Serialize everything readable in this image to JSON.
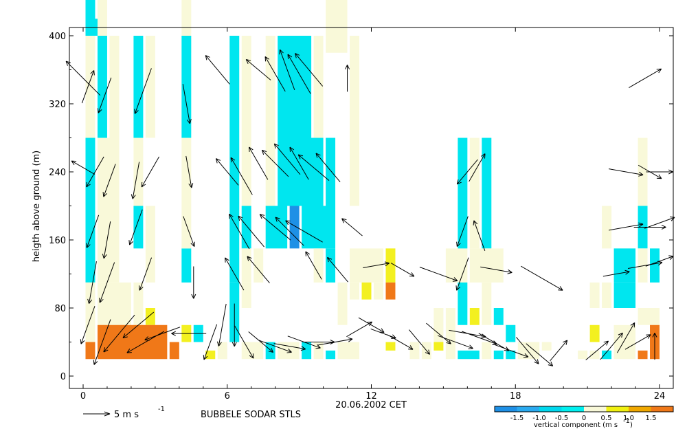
{
  "chart_data": {
    "type": "heatmap",
    "title": "",
    "xlabel": "20.06.2002 CET",
    "ylabel": "heigth above ground (m)",
    "xlim": [
      -0.5,
      24.5
    ],
    "ylim": [
      -10,
      405
    ],
    "xticks": [
      0,
      6,
      12,
      18,
      24
    ],
    "yticks": [
      0,
      80,
      160,
      240,
      320,
      400
    ],
    "caption": "BUBBELE SODAR STLS",
    "arrow_legend": "5 m s",
    "arrow_legend_exp": "-1",
    "colorbar": {
      "label": "vertical component (m s",
      "label_exp": "-1",
      "label_close": ")",
      "ticks": [
        "-1.5",
        "-1.0",
        "-0.5",
        "0",
        "0.5",
        "1.0",
        "1.5"
      ],
      "colors": [
        "#1e90e6",
        "#2aaaf0",
        "#00d8ee",
        "#00f0f0",
        "#f8f8d8",
        "#f0f010",
        "#f0a800",
        "#f07818"
      ]
    },
    "legend_colors": {
      "neg_strong": "#1e90e6",
      "neg": "#00e6ef",
      "zero": "#f9f9d9",
      "pos": "#f3f020",
      "pos_strong": "#f07818"
    },
    "cells": [
      [
        0.1,
        0.5,
        380,
        520,
        "neg"
      ],
      [
        0.6,
        1.0,
        380,
        520,
        "zero"
      ],
      [
        4.1,
        4.5,
        380,
        520,
        "zero"
      ],
      [
        10.1,
        11.0,
        380,
        520,
        "zero"
      ],
      [
        0.1,
        0.6,
        400,
        420,
        "neg"
      ],
      [
        0.1,
        0.5,
        280,
        400,
        "zero"
      ],
      [
        0.6,
        1.0,
        280,
        400,
        "neg"
      ],
      [
        1.1,
        1.5,
        280,
        400,
        "zero"
      ],
      [
        2.1,
        2.5,
        280,
        400,
        "neg"
      ],
      [
        2.6,
        3.0,
        280,
        400,
        "zero"
      ],
      [
        4.1,
        4.5,
        280,
        400,
        "neg"
      ],
      [
        6.1,
        6.5,
        280,
        400,
        "neg"
      ],
      [
        6.6,
        7.0,
        280,
        400,
        "zero"
      ],
      [
        7.6,
        8.0,
        280,
        400,
        "zero"
      ],
      [
        8.1,
        9.5,
        280,
        400,
        "neg"
      ],
      [
        9.6,
        10.0,
        280,
        400,
        "zero"
      ],
      [
        11.1,
        11.5,
        280,
        400,
        "zero"
      ],
      [
        0.1,
        0.5,
        200,
        280,
        "neg"
      ],
      [
        0.6,
        1.5,
        200,
        280,
        "zero"
      ],
      [
        2.1,
        2.5,
        200,
        280,
        "zero"
      ],
      [
        4.1,
        4.5,
        200,
        280,
        "zero"
      ],
      [
        6.1,
        6.5,
        200,
        280,
        "neg"
      ],
      [
        6.6,
        7.0,
        200,
        280,
        "zero"
      ],
      [
        7.6,
        8.0,
        200,
        280,
        "zero"
      ],
      [
        8.1,
        10.0,
        200,
        280,
        "neg"
      ],
      [
        10.1,
        10.5,
        200,
        280,
        "neg"
      ],
      [
        11.1,
        11.5,
        200,
        280,
        "zero"
      ],
      [
        15.6,
        16.0,
        200,
        280,
        "neg"
      ],
      [
        16.1,
        16.5,
        200,
        280,
        "zero"
      ],
      [
        16.6,
        17.0,
        200,
        280,
        "neg"
      ],
      [
        23.1,
        23.5,
        200,
        280,
        "zero"
      ],
      [
        0.1,
        0.5,
        110,
        200,
        "neg"
      ],
      [
        0.6,
        1.5,
        110,
        200,
        "zero"
      ],
      [
        2.1,
        2.5,
        150,
        200,
        "neg"
      ],
      [
        2.6,
        3.0,
        110,
        200,
        "zero"
      ],
      [
        4.1,
        4.5,
        110,
        150,
        "neg"
      ],
      [
        4.1,
        4.5,
        150,
        200,
        "zero"
      ],
      [
        6.1,
        6.5,
        110,
        200,
        "neg"
      ],
      [
        6.6,
        7.0,
        150,
        200,
        "neg"
      ],
      [
        6.6,
        7.0,
        110,
        150,
        "zero"
      ],
      [
        7.1,
        7.5,
        110,
        150,
        "zero"
      ],
      [
        7.6,
        8.5,
        150,
        200,
        "neg"
      ],
      [
        8.6,
        9.0,
        150,
        200,
        "neg_strong"
      ],
      [
        9.1,
        10.5,
        150,
        200,
        "neg"
      ],
      [
        9.6,
        10.0,
        110,
        150,
        "zero"
      ],
      [
        10.1,
        10.5,
        110,
        150,
        "neg"
      ],
      [
        11.1,
        12.5,
        110,
        150,
        "zero"
      ],
      [
        12.6,
        13.0,
        110,
        150,
        "pos"
      ],
      [
        15.1,
        16.0,
        110,
        150,
        "zero"
      ],
      [
        15.6,
        16.0,
        150,
        200,
        "neg"
      ],
      [
        16.1,
        16.5,
        150,
        200,
        "zero"
      ],
      [
        16.6,
        17.0,
        150,
        200,
        "neg"
      ],
      [
        16.1,
        17.5,
        110,
        150,
        "zero"
      ],
      [
        21.6,
        22.0,
        150,
        200,
        "zero"
      ],
      [
        22.1,
        23.0,
        110,
        150,
        "neg"
      ],
      [
        23.1,
        23.5,
        150,
        200,
        "neg"
      ],
      [
        23.1,
        23.5,
        110,
        150,
        "zero"
      ],
      [
        23.6,
        24.0,
        110,
        150,
        "neg"
      ],
      [
        0.1,
        0.5,
        40,
        110,
        "zero"
      ],
      [
        0.6,
        2.0,
        40,
        110,
        "zero"
      ],
      [
        2.1,
        2.5,
        60,
        110,
        "zero"
      ],
      [
        2.6,
        3.0,
        60,
        80,
        "pos"
      ],
      [
        6.1,
        6.5,
        80,
        110,
        "neg"
      ],
      [
        6.1,
        6.5,
        40,
        80,
        "neg"
      ],
      [
        6.6,
        7.0,
        80,
        110,
        "zero"
      ],
      [
        10.6,
        11.0,
        60,
        110,
        "zero"
      ],
      [
        11.1,
        11.5,
        90,
        110,
        "zero"
      ],
      [
        11.6,
        12.0,
        90,
        110,
        "pos"
      ],
      [
        12.1,
        12.5,
        90,
        110,
        "zero"
      ],
      [
        12.6,
        13.0,
        90,
        110,
        "pos_strong"
      ],
      [
        14.6,
        15.0,
        40,
        80,
        "zero"
      ],
      [
        15.1,
        15.5,
        40,
        80,
        "zero"
      ],
      [
        15.6,
        16.0,
        60,
        110,
        "neg"
      ],
      [
        16.1,
        16.5,
        60,
        80,
        "pos"
      ],
      [
        16.6,
        17.0,
        60,
        110,
        "zero"
      ],
      [
        17.1,
        17.5,
        60,
        80,
        "neg"
      ],
      [
        21.1,
        21.5,
        80,
        110,
        "zero"
      ],
      [
        21.6,
        22.0,
        80,
        110,
        "zero"
      ],
      [
        22.1,
        23.0,
        80,
        110,
        "neg"
      ],
      [
        23.1,
        24.0,
        60,
        80,
        "zero"
      ],
      [
        0.1,
        0.5,
        20,
        40,
        "pos_strong"
      ],
      [
        0.6,
        3.5,
        20,
        60,
        "pos_strong"
      ],
      [
        3.6,
        4.0,
        20,
        40,
        "pos_strong"
      ],
      [
        4.1,
        4.5,
        40,
        60,
        "pos"
      ],
      [
        4.6,
        5.0,
        40,
        60,
        "neg"
      ],
      [
        5.1,
        5.5,
        20,
        30,
        "pos"
      ],
      [
        5.6,
        6.0,
        20,
        40,
        "zero"
      ],
      [
        6.6,
        7.5,
        20,
        40,
        "zero"
      ],
      [
        7.6,
        8.0,
        20,
        40,
        "neg"
      ],
      [
        8.1,
        9.0,
        20,
        40,
        "zero"
      ],
      [
        9.1,
        9.5,
        20,
        40,
        "neg"
      ],
      [
        9.6,
        10.0,
        20,
        40,
        "zero"
      ],
      [
        10.1,
        10.5,
        20,
        30,
        "neg"
      ],
      [
        10.6,
        11.5,
        20,
        40,
        "zero"
      ],
      [
        12.6,
        13.0,
        30,
        40,
        "pos"
      ],
      [
        13.6,
        14.0,
        20,
        40,
        "zero"
      ],
      [
        14.1,
        14.5,
        20,
        40,
        "zero"
      ],
      [
        14.6,
        15.0,
        30,
        40,
        "pos"
      ],
      [
        15.1,
        15.5,
        20,
        40,
        "zero"
      ],
      [
        15.6,
        16.5,
        20,
        30,
        "neg"
      ],
      [
        16.6,
        17.0,
        20,
        40,
        "zero"
      ],
      [
        17.1,
        17.5,
        20,
        30,
        "neg"
      ],
      [
        17.6,
        18.0,
        20,
        30,
        "neg"
      ],
      [
        17.6,
        18.0,
        40,
        60,
        "neg"
      ],
      [
        18.1,
        19.0,
        20,
        40,
        "zero"
      ],
      [
        19.1,
        19.5,
        30,
        40,
        "zero"
      ],
      [
        20.6,
        21.0,
        20,
        30,
        "zero"
      ],
      [
        21.1,
        21.5,
        20,
        30,
        "zero"
      ],
      [
        21.1,
        21.5,
        40,
        60,
        "pos"
      ],
      [
        21.6,
        22.0,
        20,
        30,
        "neg"
      ],
      [
        22.1,
        23.0,
        20,
        60,
        "zero"
      ],
      [
        23.1,
        23.5,
        20,
        30,
        "pos_strong"
      ],
      [
        23.6,
        24.0,
        20,
        60,
        "pos_strong"
      ]
    ],
    "arrows": [
      [
        0.0,
        350,
        315,
        1.8
      ],
      [
        0.2,
        340,
        20,
        1.3
      ],
      [
        0.9,
        330,
        200,
        1.4
      ],
      [
        2.5,
        335,
        200,
        1.8
      ],
      [
        4.3,
        320,
        170,
        1.5
      ],
      [
        5.6,
        360,
        320,
        1.4
      ],
      [
        7.3,
        360,
        310,
        1.2
      ],
      [
        8.0,
        355,
        330,
        1.5
      ],
      [
        8.5,
        360,
        340,
        1.6
      ],
      [
        9.0,
        355,
        330,
        1.7
      ],
      [
        9.4,
        360,
        320,
        1.6
      ],
      [
        11.0,
        350,
        360,
        1.0
      ],
      [
        23.4,
        350,
        60,
        1.4
      ],
      [
        0.0,
        245,
        300,
        1.0
      ],
      [
        0.5,
        240,
        210,
        1.3
      ],
      [
        1.1,
        230,
        200,
        1.3
      ],
      [
        2.2,
        230,
        190,
        1.4
      ],
      [
        2.8,
        240,
        210,
        1.3
      ],
      [
        4.4,
        240,
        170,
        1.2
      ],
      [
        6.0,
        240,
        320,
        1.3
      ],
      [
        6.6,
        235,
        330,
        1.6
      ],
      [
        7.3,
        250,
        330,
        1.4
      ],
      [
        8.0,
        250,
        315,
        1.4
      ],
      [
        8.5,
        255,
        320,
        1.5
      ],
      [
        9.0,
        250,
        330,
        1.4
      ],
      [
        9.6,
        245,
        310,
        1.5
      ],
      [
        10.2,
        245,
        320,
        1.4
      ],
      [
        16.0,
        240,
        220,
        1.2
      ],
      [
        16.4,
        245,
        30,
        1.2
      ],
      [
        22.6,
        240,
        100,
        1.3
      ],
      [
        23.6,
        240,
        120,
        1.0
      ],
      [
        24.0,
        240,
        90,
        1.0
      ],
      [
        0.4,
        170,
        200,
        1.3
      ],
      [
        1.0,
        160,
        190,
        1.4
      ],
      [
        2.2,
        175,
        200,
        1.4
      ],
      [
        4.4,
        170,
        160,
        1.2
      ],
      [
        6.5,
        170,
        330,
        1.5
      ],
      [
        7.0,
        170,
        320,
        1.5
      ],
      [
        8.0,
        175,
        310,
        1.5
      ],
      [
        8.6,
        170,
        315,
        1.5
      ],
      [
        9.2,
        170,
        300,
        1.6
      ],
      [
        11.2,
        175,
        310,
        1.0
      ],
      [
        15.8,
        170,
        200,
        1.2
      ],
      [
        16.5,
        165,
        340,
        1.2
      ],
      [
        22.6,
        175,
        80,
        1.3
      ],
      [
        23.6,
        175,
        90,
        1.2
      ],
      [
        24.0,
        180,
        70,
        1.2
      ],
      [
        0.4,
        110,
        190,
        1.6
      ],
      [
        1.0,
        110,
        200,
        1.6
      ],
      [
        2.6,
        120,
        200,
        1.3
      ],
      [
        4.6,
        110,
        180,
        1.2
      ],
      [
        6.3,
        120,
        330,
        1.4
      ],
      [
        7.3,
        125,
        320,
        1.3
      ],
      [
        9.6,
        130,
        330,
        1.2
      ],
      [
        10.6,
        125,
        320,
        1.2
      ],
      [
        12.2,
        130,
        80,
        1.0
      ],
      [
        13.3,
        125,
        120,
        1.0
      ],
      [
        14.8,
        120,
        110,
        1.5
      ],
      [
        15.8,
        120,
        200,
        1.3
      ],
      [
        17.2,
        125,
        100,
        1.2
      ],
      [
        19.1,
        115,
        120,
        1.8
      ],
      [
        22.2,
        120,
        80,
        1.0
      ],
      [
        23.4,
        130,
        80,
        1.3
      ],
      [
        24.0,
        135,
        70,
        1.1
      ],
      [
        0.2,
        60,
        200,
        1.5
      ],
      [
        0.8,
        40,
        200,
        1.8
      ],
      [
        1.5,
        50,
        220,
        1.8
      ],
      [
        2.3,
        60,
        230,
        1.5
      ],
      [
        2.6,
        40,
        240,
        1.6
      ],
      [
        3.3,
        50,
        250,
        1.4
      ],
      [
        4.4,
        50,
        270,
        1.3
      ],
      [
        5.3,
        40,
        200,
        1.4
      ],
      [
        5.8,
        60,
        190,
        1.6
      ],
      [
        6.3,
        60,
        180,
        1.6
      ],
      [
        6.7,
        40,
        150,
        1.4
      ],
      [
        7.4,
        40,
        130,
        1.2
      ],
      [
        8.0,
        35,
        110,
        1.3
      ],
      [
        8.6,
        35,
        100,
        1.2
      ],
      [
        9.2,
        40,
        110,
        1.3
      ],
      [
        9.8,
        40,
        90,
        1.2
      ],
      [
        10.5,
        40,
        80,
        1.3
      ],
      [
        11.5,
        55,
        60,
        1.1
      ],
      [
        12.0,
        60,
        120,
        1.1
      ],
      [
        12.5,
        50,
        110,
        1.0
      ],
      [
        13.2,
        40,
        120,
        1.1
      ],
      [
        14.0,
        40,
        140,
        1.2
      ],
      [
        14.8,
        50,
        130,
        1.2
      ],
      [
        15.5,
        40,
        110,
        1.4
      ],
      [
        16.0,
        50,
        100,
        1.4
      ],
      [
        16.5,
        45,
        110,
        1.4
      ],
      [
        17.1,
        40,
        120,
        1.3
      ],
      [
        17.8,
        30,
        110,
        1.4
      ],
      [
        18.5,
        30,
        140,
        1.3
      ],
      [
        19.0,
        25,
        130,
        1.3
      ],
      [
        19.8,
        30,
        40,
        1.0
      ],
      [
        21.4,
        30,
        50,
        1.1
      ],
      [
        22.0,
        35,
        40,
        1.3
      ],
      [
        22.6,
        45,
        30,
        1.3
      ],
      [
        23.1,
        40,
        60,
        1.1
      ],
      [
        23.8,
        35,
        0,
        1.0
      ]
    ]
  }
}
